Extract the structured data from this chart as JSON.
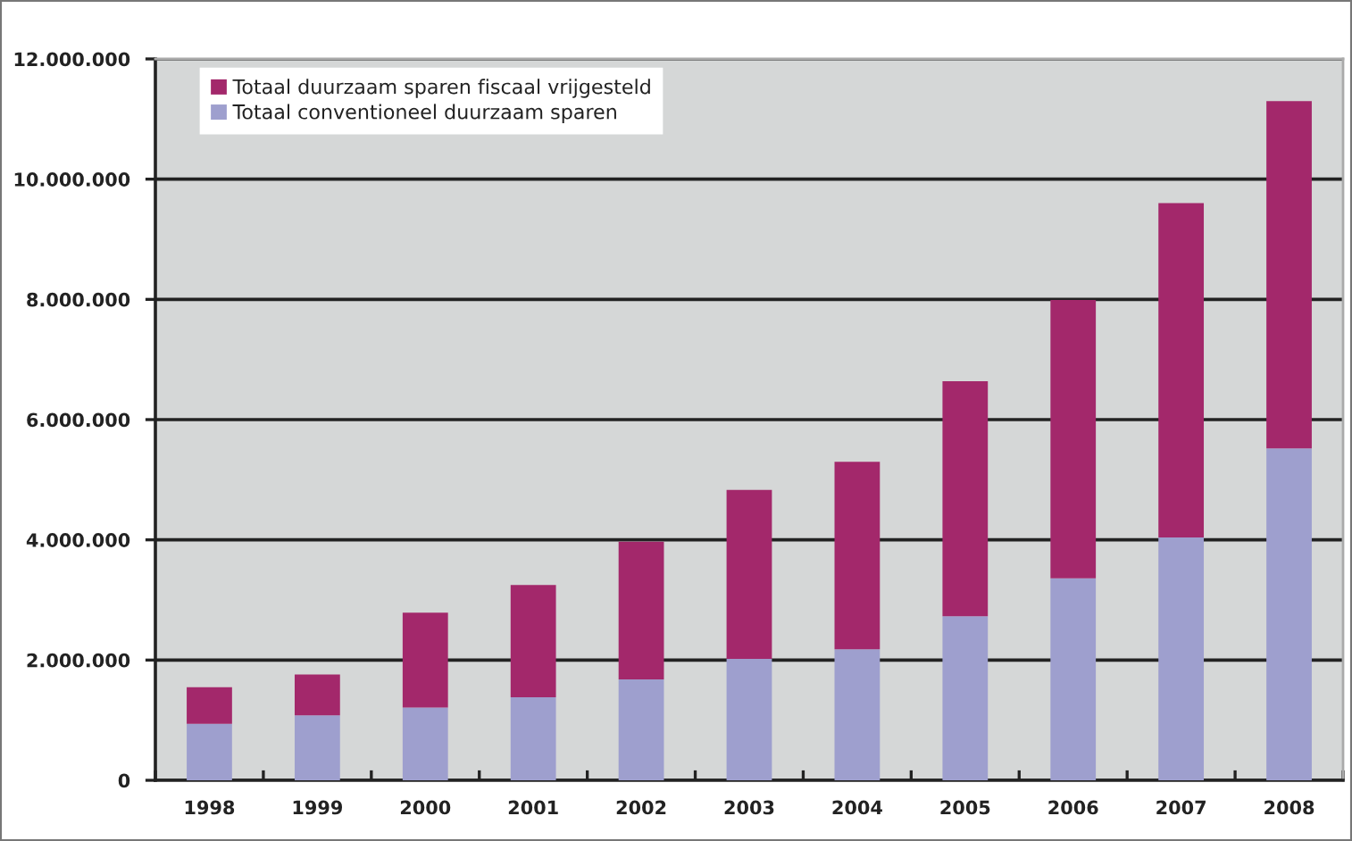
{
  "chart_data": {
    "type": "bar",
    "stacked": true,
    "categories": [
      "1998",
      "1999",
      "2000",
      "2001",
      "2002",
      "2003",
      "2004",
      "2005",
      "2006",
      "2007",
      "2008"
    ],
    "series": [
      {
        "name": "Totaal conventioneel duurzaam sparen",
        "color": "#9e9fce",
        "values": [
          940000,
          1080000,
          1210000,
          1380000,
          1680000,
          2020000,
          2180000,
          2730000,
          3360000,
          4040000,
          5520000
        ]
      },
      {
        "name": "Totaal duurzaam sparen fiscaal vrijgesteld",
        "color": "#a3286b",
        "values": [
          610000,
          680000,
          1580000,
          1870000,
          2290000,
          2810000,
          3120000,
          3910000,
          4630000,
          5560000,
          5780000
        ]
      }
    ],
    "ylim": [
      0,
      12000000
    ],
    "yticks": [
      {
        "value": 0,
        "label": "0"
      },
      {
        "value": 2000000,
        "label": "2.000.000"
      },
      {
        "value": 4000000,
        "label": "4.000.000"
      },
      {
        "value": 6000000,
        "label": "6.000.000"
      },
      {
        "value": 8000000,
        "label": "8.000.000"
      },
      {
        "value": 10000000,
        "label": "10.000.000"
      },
      {
        "value": 12000000,
        "label": "12.000.000"
      }
    ],
    "grid": "y",
    "legend": "top left"
  }
}
